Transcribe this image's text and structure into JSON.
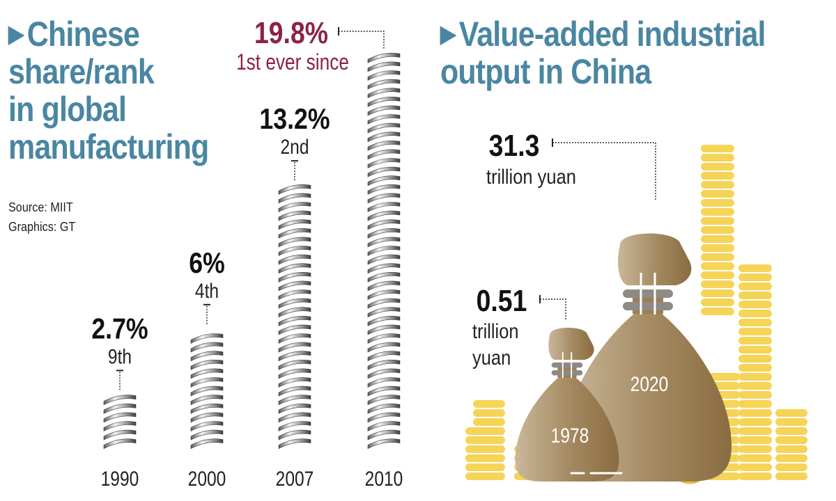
{
  "left_title_lines": [
    "Chinese",
    "share/rank",
    "in global",
    "manufacturing"
  ],
  "right_title_lines": [
    "Value-added industrial",
    "output in China"
  ],
  "source": "Source: MIIT",
  "graphics": "Graphics: GT",
  "colors": {
    "title": "#4a86a2",
    "highlight": "#8b2346",
    "bag": "#a0845c",
    "coin": "#f5d457",
    "band": "#8e8a86"
  },
  "chart_data": [
    {
      "type": "bar",
      "style": "spring columns",
      "categories": [
        "1990",
        "2000",
        "2007",
        "2010"
      ],
      "values": [
        2.7,
        6,
        13.2,
        19.8
      ],
      "value_labels": [
        "2.7%",
        "6%",
        "13.2%",
        "19.8%"
      ],
      "rank_labels": [
        "9th",
        "4th",
        "2nd",
        "1st ever since"
      ],
      "highlight_index": 3
    },
    {
      "type": "bar",
      "style": "money bags",
      "categories": [
        "1978",
        "2020"
      ],
      "values": [
        0.51,
        31.3
      ],
      "value_labels": [
        "0.51",
        "31.3"
      ],
      "unit_labels": [
        [
          "trillion",
          "yuan"
        ],
        [
          "trillion yuan"
        ]
      ]
    }
  ]
}
